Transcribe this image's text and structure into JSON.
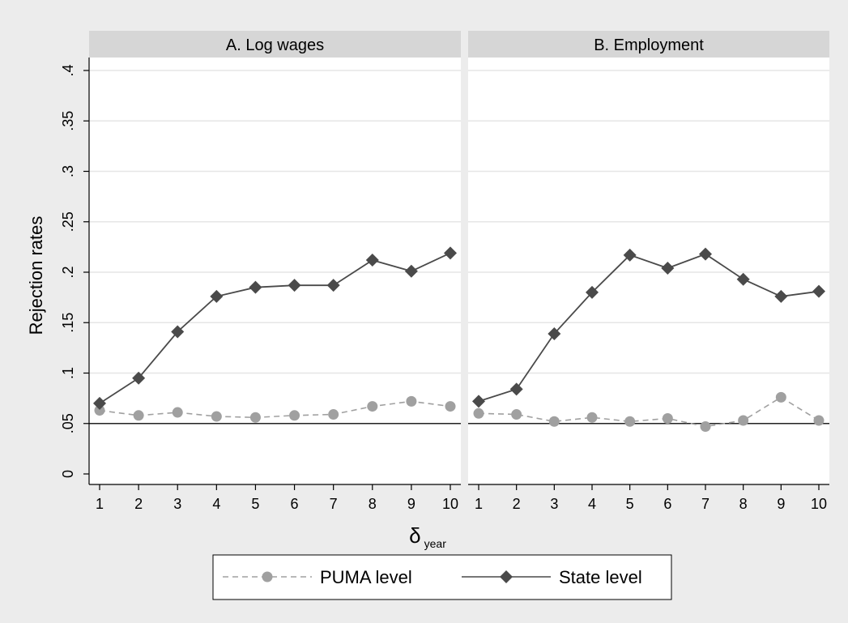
{
  "chart_data": {
    "type": "line",
    "ylabel": "Rejection rates",
    "xlabel": "δ",
    "xlabel_subscript": "year",
    "x": [
      1,
      2,
      3,
      4,
      5,
      6,
      7,
      8,
      9,
      10
    ],
    "x_ticks": [
      "1",
      "2",
      "3",
      "4",
      "5",
      "6",
      "7",
      "8",
      "9",
      "10"
    ],
    "ylim": [
      0,
      0.4
    ],
    "y_ticks": [
      {
        "value": 0,
        "label": "0"
      },
      {
        "value": 0.05,
        "label": ".05"
      },
      {
        "value": 0.1,
        "label": ".1"
      },
      {
        "value": 0.15,
        "label": ".15"
      },
      {
        "value": 0.2,
        "label": ".2"
      },
      {
        "value": 0.25,
        "label": ".25"
      },
      {
        "value": 0.3,
        "label": ".3"
      },
      {
        "value": 0.35,
        "label": ".35"
      },
      {
        "value": 0.4,
        "label": ".4"
      }
    ],
    "reference_line": 0.05,
    "grid": true,
    "legend_position": "bottom",
    "panels": [
      {
        "title": "A. Log wages",
        "series": [
          {
            "name": "PUMA level",
            "marker": "circle",
            "style": "dashed",
            "color": "#a0a0a0",
            "values": [
              0.063,
              0.058,
              0.061,
              0.057,
              0.056,
              0.058,
              0.059,
              0.067,
              0.072,
              0.067
            ]
          },
          {
            "name": "State level",
            "marker": "diamond",
            "style": "solid",
            "color": "#4a4a4a",
            "values": [
              0.07,
              0.095,
              0.141,
              0.176,
              0.185,
              0.187,
              0.187,
              0.212,
              0.201,
              0.219
            ]
          }
        ]
      },
      {
        "title": "B. Employment",
        "series": [
          {
            "name": "PUMA level",
            "marker": "circle",
            "style": "dashed",
            "color": "#a0a0a0",
            "values": [
              0.06,
              0.059,
              0.052,
              0.056,
              0.052,
              0.055,
              0.047,
              0.053,
              0.076,
              0.053
            ]
          },
          {
            "name": "State level",
            "marker": "diamond",
            "style": "solid",
            "color": "#4a4a4a",
            "values": [
              0.072,
              0.084,
              0.139,
              0.18,
              0.217,
              0.204,
              0.218,
              0.193,
              0.176,
              0.181
            ]
          }
        ]
      }
    ],
    "legend": [
      {
        "name": "PUMA level",
        "marker": "circle",
        "style": "dashed",
        "color": "#a0a0a0"
      },
      {
        "name": "State level",
        "marker": "diamond",
        "style": "solid",
        "color": "#4a4a4a"
      }
    ]
  },
  "colors": {
    "background": "#ececec",
    "plot_area": "#ffffff",
    "panel_header": "#d6d6d6",
    "gridline": "#e6e6e6",
    "axis": "#000000",
    "reference_line": "#222222"
  }
}
